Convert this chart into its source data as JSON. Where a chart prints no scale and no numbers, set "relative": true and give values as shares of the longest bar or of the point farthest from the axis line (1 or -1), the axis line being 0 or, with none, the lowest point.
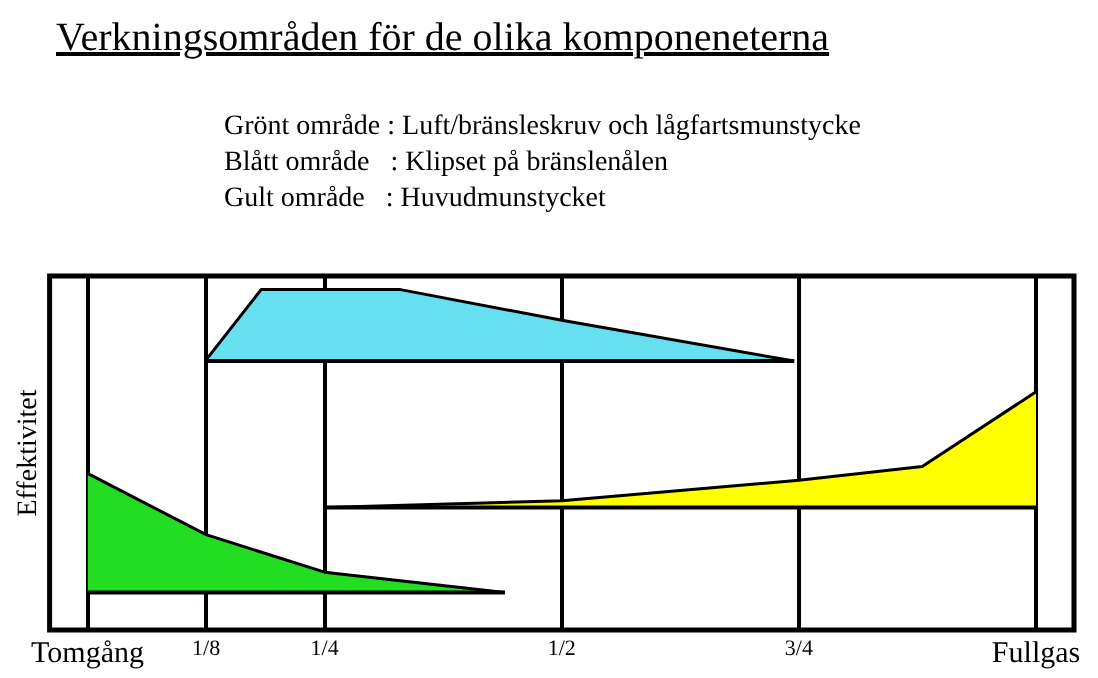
{
  "chart_data": {
    "type": "area",
    "title": "Verkningsområden för de olika komponeneterna",
    "annotations": [
      "Grönt område : Luft/bränsleskruv och lågfartsmunstycke",
      "Blått område   : Klipset på bränslenålen",
      "Gult område   : Huvudmunstycket"
    ],
    "ylabel": "Effektivitet",
    "relative": true,
    "xlim": [
      -0.04,
      1.04
    ],
    "xticks": [
      {
        "value": 0,
        "label": "Tomgång"
      },
      {
        "value": 0.125,
        "label": "1/8"
      },
      {
        "value": 0.25,
        "label": "1/4"
      },
      {
        "value": 0.5,
        "label": "1/2"
      },
      {
        "value": 0.75,
        "label": "3/4"
      },
      {
        "value": 1,
        "label": "Fullgas"
      }
    ],
    "grid": "x",
    "legend": false,
    "marker": "none",
    "series": [
      {
        "type": "line",
        "color": "#000000",
        "x": [
          0,
          0.125,
          0.25,
          0.44
        ],
        "values": [
          0.11,
          0.11,
          0.11,
          0.11
        ]
      },
      {
        "color": "#22dd22",
        "x": [
          0,
          0.125,
          0.25,
          0.44
        ],
        "values": [
          0.46,
          0.28,
          0.17,
          0.11
        ]
      },
      {
        "type": "line",
        "color": "#000000",
        "x": [
          0.124,
          0.183,
          0.33,
          0.5,
          0.745
        ],
        "values": [
          0.79,
          0.79,
          0.79,
          0.79,
          0.79
        ]
      },
      {
        "color": "#66e0f0",
        "x": [
          0.124,
          0.183,
          0.33,
          0.5,
          0.745
        ],
        "values": [
          0.79,
          1,
          1,
          0.91,
          0.79
        ]
      },
      {
        "type": "line",
        "color": "#000000",
        "x": [
          0.25,
          0.5,
          0.75,
          0.88,
          1
        ],
        "values": [
          0.36,
          0.36,
          0.36,
          0.36,
          0.36
        ]
      },
      {
        "color": "#ffff00",
        "x": [
          0.25,
          0.5,
          0.75,
          0.88,
          1
        ],
        "values": [
          0.36,
          0.38,
          0.44,
          0.48,
          0.7
        ]
      }
    ]
  }
}
